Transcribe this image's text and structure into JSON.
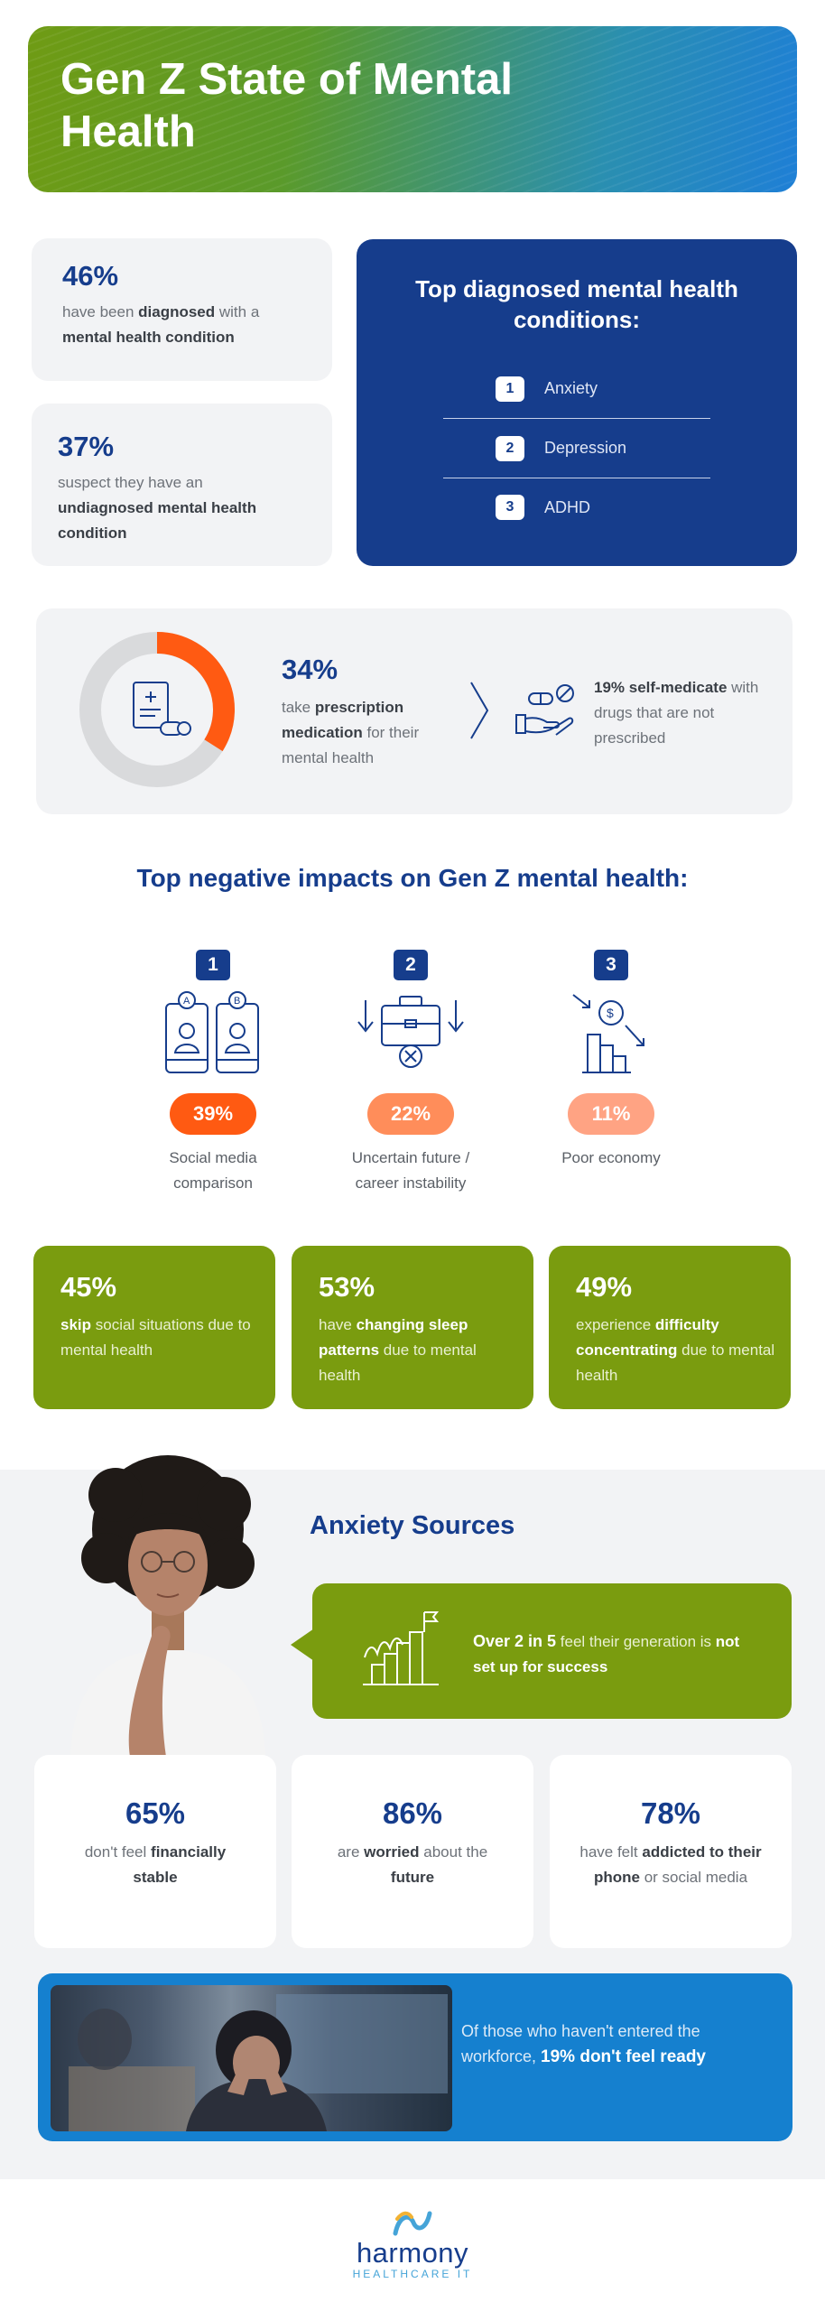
{
  "hero": {
    "title": "Gen Z State of Mental Health"
  },
  "stat_diagnosed": {
    "pct": "46%",
    "pre": "have been ",
    "bold": "diagnosed",
    "mid": " with a ",
    "bold2": "mental health condition"
  },
  "stat_undiagnosed": {
    "pct": "37%",
    "pre": "suspect they have an ",
    "bold": "undiagnosed mental health condition"
  },
  "top_conditions": {
    "title": "Top diagnosed mental health conditions:",
    "items": [
      {
        "num": "1",
        "label": "Anxiety"
      },
      {
        "num": "2",
        "label": "Depression"
      },
      {
        "num": "3",
        "label": "ADHD"
      }
    ]
  },
  "medication": {
    "pct": "34%",
    "pre": "take ",
    "bold": "prescription medication",
    "post": " for their mental health",
    "donut_fraction": 0.34,
    "self_bold": "19% self-medicate",
    "self_post": " with drugs that are not prescribed"
  },
  "negative": {
    "title": "Top negative impacts on Gen Z mental health:",
    "items": [
      {
        "num": "1",
        "pct": "39%",
        "desc1": "Social media",
        "desc2": "comparison",
        "pill_color": "#ff5a12"
      },
      {
        "num": "2",
        "pct": "22%",
        "desc1": "Uncertain future /",
        "desc2": "career instability",
        "pill_color": "#ff8d5a"
      },
      {
        "num": "3",
        "pct": "11%",
        "desc1": "Poor economy",
        "desc2": "",
        "pill_color": "#ffa383"
      }
    ]
  },
  "green_stats": [
    {
      "pct": "45%",
      "bold": "skip",
      "post": " social situations due to mental health"
    },
    {
      "pct": "53%",
      "pre": "have ",
      "bold": "changing sleep patterns",
      "post": " due to mental health"
    },
    {
      "pct": "49%",
      "pre": "experience ",
      "bold": "difficulty concentrating",
      "post": " due to mental health"
    }
  ],
  "anxiety": {
    "title": "Anxiety Sources",
    "bubble_bold": "Over 2 in 5",
    "bubble_mid": " feel their generation is ",
    "bubble_bold2": "not set up for success",
    "cards": [
      {
        "pct": "65%",
        "pre": "don't feel ",
        "bold": "financially stable",
        "post": ""
      },
      {
        "pct": "86%",
        "pre": "are ",
        "bold": "worried",
        "mid": " about the ",
        "bold2": "future"
      },
      {
        "pct": "78%",
        "pre": "have felt ",
        "bold": "addicted to their phone",
        "post": " or social media"
      }
    ]
  },
  "workforce": {
    "pre": "Of those who haven't entered the workforce, ",
    "bold": "19% don't feel ready"
  },
  "logo": {
    "name": "harmony",
    "sub": "HEALTHCARE IT"
  },
  "colors": {
    "navy": "#163d8c",
    "green": "#7a9c0f",
    "blue": "#1580cf",
    "orange": "#ff5a12"
  }
}
